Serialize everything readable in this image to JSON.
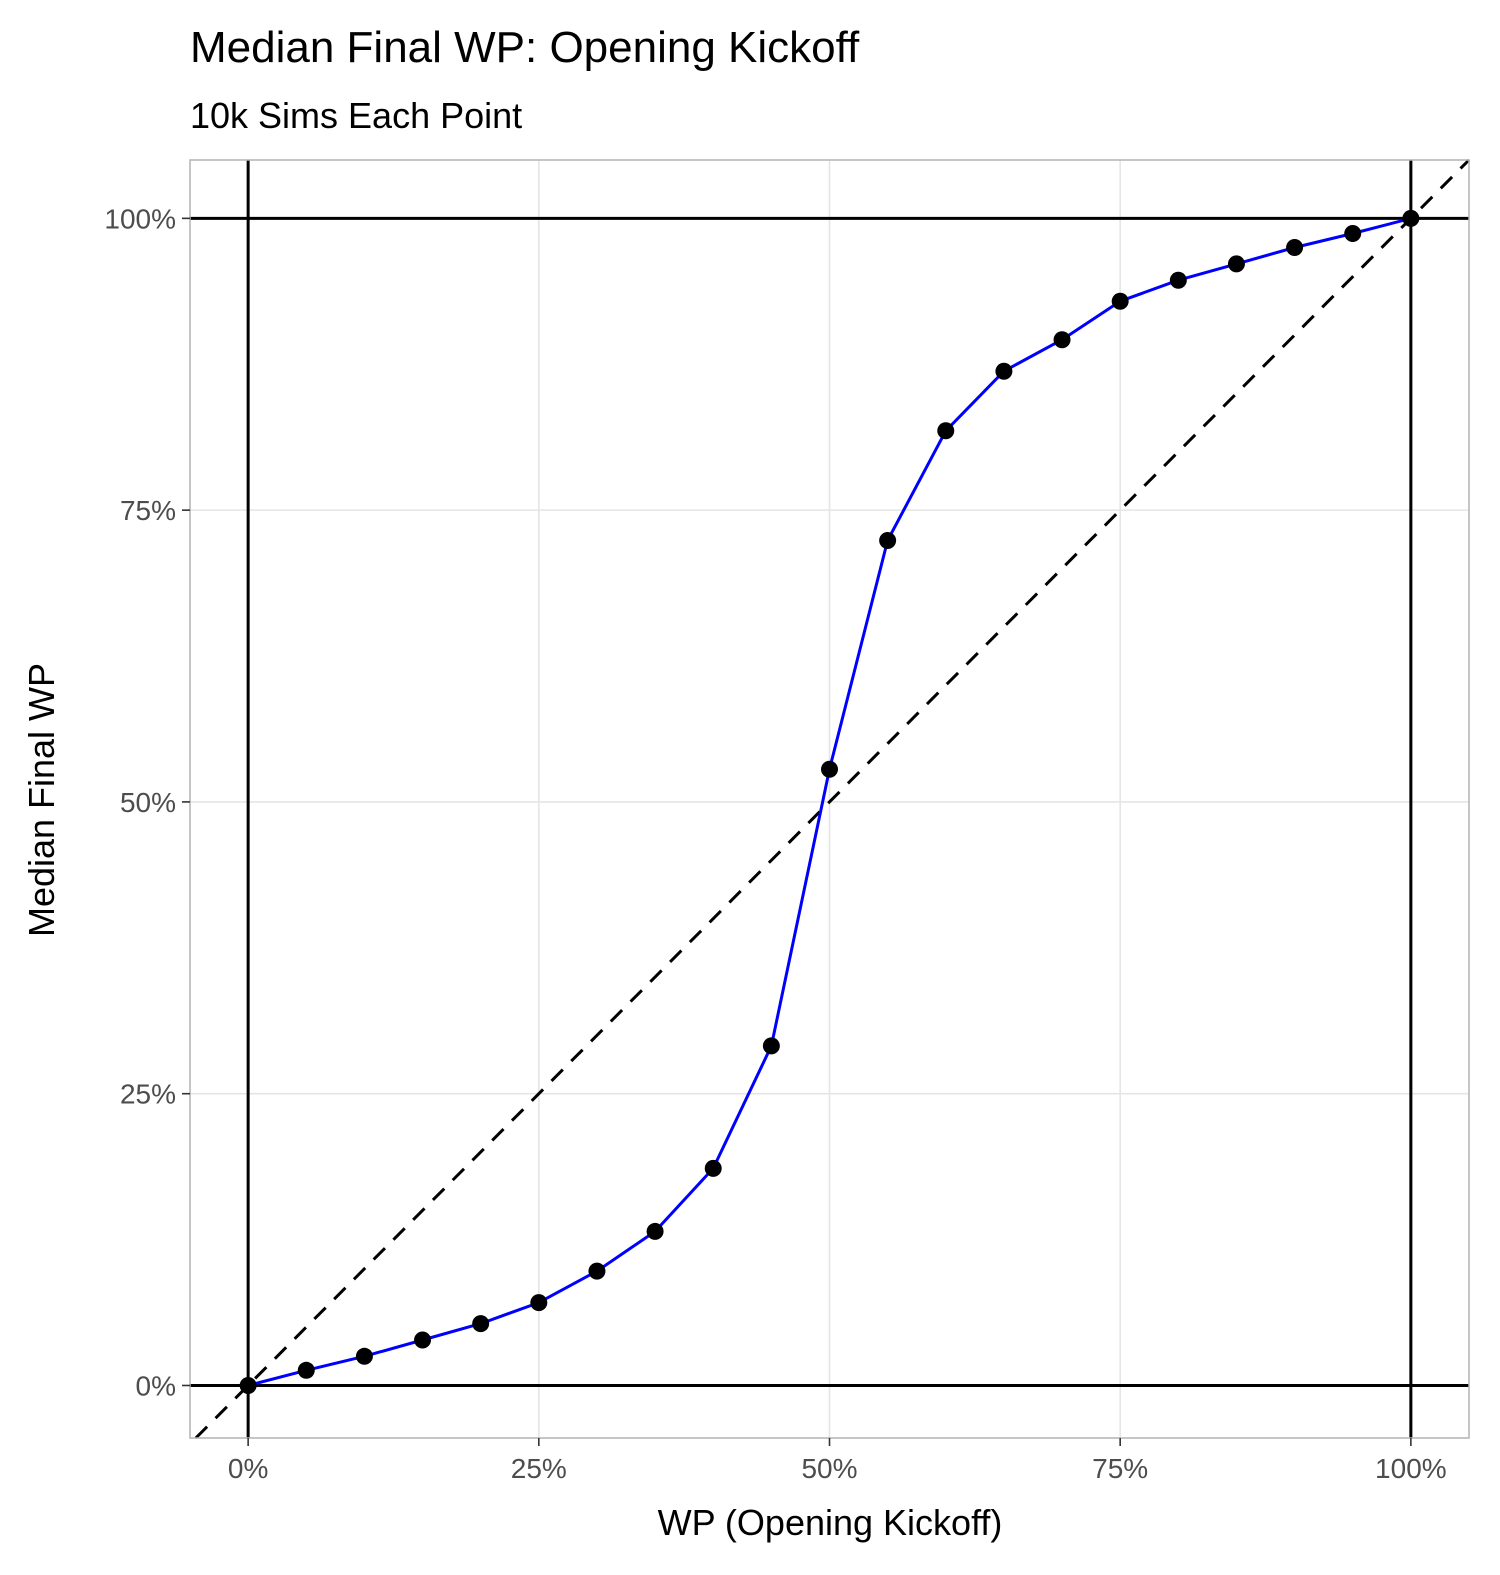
{
  "chart_data": {
    "type": "line",
    "title": "Median Final WP: Opening Kickoff",
    "subtitle": "10k Sims Each Point",
    "xlabel": "WP (Opening Kickoff)",
    "ylabel": "Median Final WP",
    "xlim": [
      -0.05,
      1.05
    ],
    "ylim": [
      -0.045,
      1.05
    ],
    "x_ticks": [
      0,
      0.25,
      0.5,
      0.75,
      1.0
    ],
    "x_tick_labels": [
      "0%",
      "25%",
      "50%",
      "75%",
      "100%"
    ],
    "y_ticks": [
      0,
      0.25,
      0.5,
      0.75,
      1.0
    ],
    "y_tick_labels": [
      "0%",
      "25%",
      "50%",
      "75%",
      "100%"
    ],
    "grid": true,
    "reference_lines": {
      "hlines": [
        0,
        1
      ],
      "vlines": [
        0,
        1
      ],
      "diagonal": "y = x (dashed)"
    },
    "series": [
      {
        "color": "#0000ff",
        "point_color": "#000000",
        "x": [
          0,
          0.05,
          0.1,
          0.15,
          0.2,
          0.25,
          0.3,
          0.35,
          0.4,
          0.45,
          0.5,
          0.55,
          0.6,
          0.65,
          0.7,
          0.75,
          0.8,
          0.85,
          0.9,
          0.95,
          1.0
        ],
        "y": [
          0.0,
          0.013,
          0.025,
          0.039,
          0.053,
          0.071,
          0.098,
          0.132,
          0.186,
          0.291,
          0.528,
          0.724,
          0.818,
          0.869,
          0.896,
          0.929,
          0.947,
          0.961,
          0.975,
          0.987,
          1.0
        ]
      }
    ]
  },
  "colors": {
    "grid": "#e5e5e5",
    "panel_border": "#b3b3b3",
    "reference": "#000000",
    "line": "#0000ff",
    "points": "#000000"
  }
}
